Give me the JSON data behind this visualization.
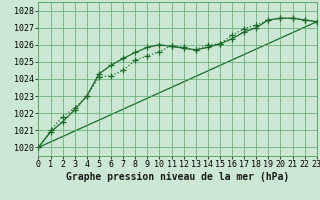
{
  "title": "Graphe pression niveau de la mer (hPa)",
  "background_color": "#cce8d4",
  "plot_bg_color": "#cce8d4",
  "grid_color": "#5aaa6a",
  "line_color": "#1a6b2a",
  "xlim": [
    0,
    23
  ],
  "ylim": [
    1019.5,
    1028.5
  ],
  "yticks": [
    1020,
    1021,
    1022,
    1023,
    1024,
    1025,
    1026,
    1027,
    1028
  ],
  "xticks": [
    0,
    1,
    2,
    3,
    4,
    5,
    6,
    7,
    8,
    9,
    10,
    11,
    12,
    13,
    14,
    15,
    16,
    17,
    18,
    19,
    20,
    21,
    22,
    23
  ],
  "line1_x": [
    0,
    1,
    2,
    3,
    4,
    5,
    6,
    7,
    8,
    9,
    10,
    11,
    12,
    13,
    14,
    15,
    16,
    17,
    18,
    19,
    20,
    21,
    22,
    23
  ],
  "line1_y": [
    1020.0,
    1020.9,
    1021.5,
    1022.2,
    1023.0,
    1024.3,
    1024.8,
    1025.2,
    1025.55,
    1025.85,
    1026.0,
    1025.9,
    1025.8,
    1025.7,
    1025.85,
    1026.05,
    1026.35,
    1026.75,
    1027.0,
    1027.45,
    1027.55,
    1027.55,
    1027.45,
    1027.35
  ],
  "line2_x": [
    0,
    1,
    2,
    3,
    4,
    5,
    6,
    7,
    8,
    9,
    10,
    11,
    12,
    13,
    14,
    15,
    16,
    17,
    18,
    19,
    20,
    21,
    22,
    23
  ],
  "line2_y": [
    1020.0,
    1021.0,
    1021.8,
    1022.3,
    1023.0,
    1024.1,
    1024.2,
    1024.5,
    1025.1,
    1025.35,
    1025.6,
    1025.95,
    1025.85,
    1025.7,
    1026.0,
    1026.05,
    1026.55,
    1026.95,
    1027.15,
    1027.45,
    1027.55,
    1027.55,
    1027.45,
    1027.35
  ],
  "line3_x": [
    0,
    23
  ],
  "line3_y": [
    1020.0,
    1027.35
  ],
  "marker": "+",
  "marker_size": 4,
  "linewidth": 0.9,
  "title_fontsize": 7,
  "tick_fontsize": 6,
  "font_family": "monospace"
}
